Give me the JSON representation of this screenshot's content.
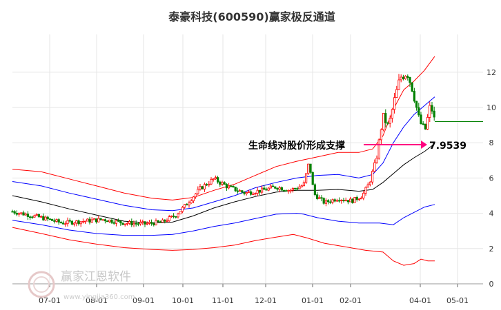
{
  "chart_data": {
    "type": "line",
    "title": "泰豪科技(600590)赢家极反通道",
    "x_ticks": [
      "07-01",
      "08-01",
      "09-01",
      "10-01",
      "11-01",
      "12-01",
      "01-01",
      "02-01",
      "04-01",
      "05-01"
    ],
    "y_ticks": [
      "0",
      "2",
      "4",
      "6",
      "8",
      "10",
      "12"
    ],
    "ylim": [
      0,
      13
    ],
    "grid": true,
    "annotation": {
      "label": "生命线对股价形成支撑",
      "value": "7.9539",
      "y": 7.9539
    },
    "last_close": 9.2,
    "series_colors": {
      "upper": "#ff0000",
      "mid_upper": "#0000ff",
      "life_line": "#000000",
      "mid_lower": "#0000ff",
      "lower": "#ff0000",
      "up_candle": "#ff0000",
      "down_candle": "#008000",
      "price_ref": "#008000"
    },
    "watermark": {
      "brand": "赢家江恩软件",
      "url": "www.yingjia360.com"
    }
  }
}
